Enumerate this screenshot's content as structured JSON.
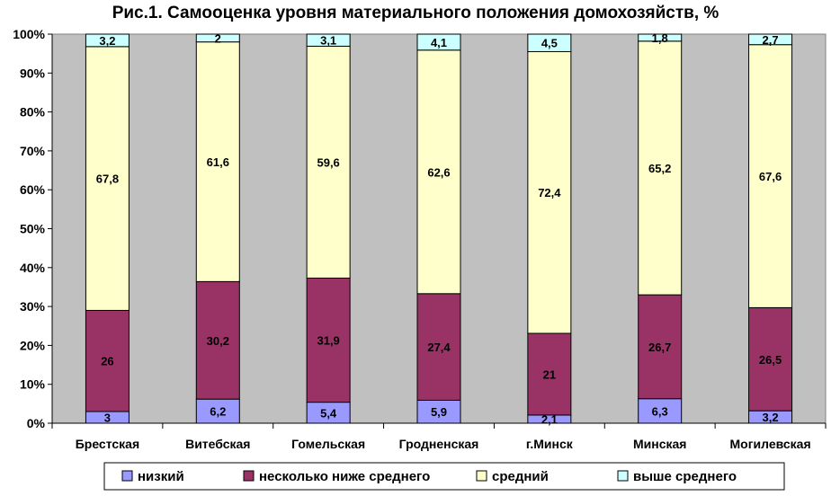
{
  "chart_data": {
    "type": "bar",
    "stacked": true,
    "percent_axis": true,
    "title": "Рис.1. Самооценка уровня материального положения домохозяйств, %",
    "xlabel": "",
    "ylabel": "",
    "ylim": [
      0,
      100
    ],
    "yticks": [
      "0%",
      "10%",
      "20%",
      "30%",
      "40%",
      "50%",
      "60%",
      "70%",
      "80%",
      "90%",
      "100%"
    ],
    "categories": [
      "Брестская",
      "Витебская",
      "Гомельская",
      "Гродненская",
      "г.Минск",
      "Минская",
      "Могилевская"
    ],
    "series": [
      {
        "name": "низкий",
        "color": "#9999ff",
        "values": [
          3,
          6.2,
          5.4,
          5.9,
          2.1,
          6.3,
          3.2
        ],
        "labels": [
          "3",
          "6,2",
          "5,4",
          "5,9",
          "2,1",
          "6,3",
          "3,2"
        ]
      },
      {
        "name": "несколько ниже среднего",
        "color": "#993366",
        "values": [
          26,
          30.2,
          31.9,
          27.4,
          21,
          26.7,
          26.5
        ],
        "labels": [
          "26",
          "30,2",
          "31,9",
          "27,4",
          "21",
          "26,7",
          "26,5"
        ]
      },
      {
        "name": "средний",
        "color": "#ffffcc",
        "values": [
          67.8,
          61.6,
          59.6,
          62.6,
          72.4,
          65.2,
          67.6
        ],
        "labels": [
          "67,8",
          "61,6",
          "59,6",
          "62,6",
          "72,4",
          "65,2",
          "67,6"
        ]
      },
      {
        "name": "выше среднего",
        "color": "#ccffff",
        "values": [
          3.2,
          2,
          3.1,
          4.1,
          4.5,
          1.8,
          2.7
        ],
        "labels": [
          "3,2",
          "2",
          "3,1",
          "4,1",
          "4,5",
          "1,8",
          "2,7"
        ]
      }
    ],
    "plot_background": "#c0c0c0",
    "grid": false,
    "legend_position": "bottom"
  }
}
